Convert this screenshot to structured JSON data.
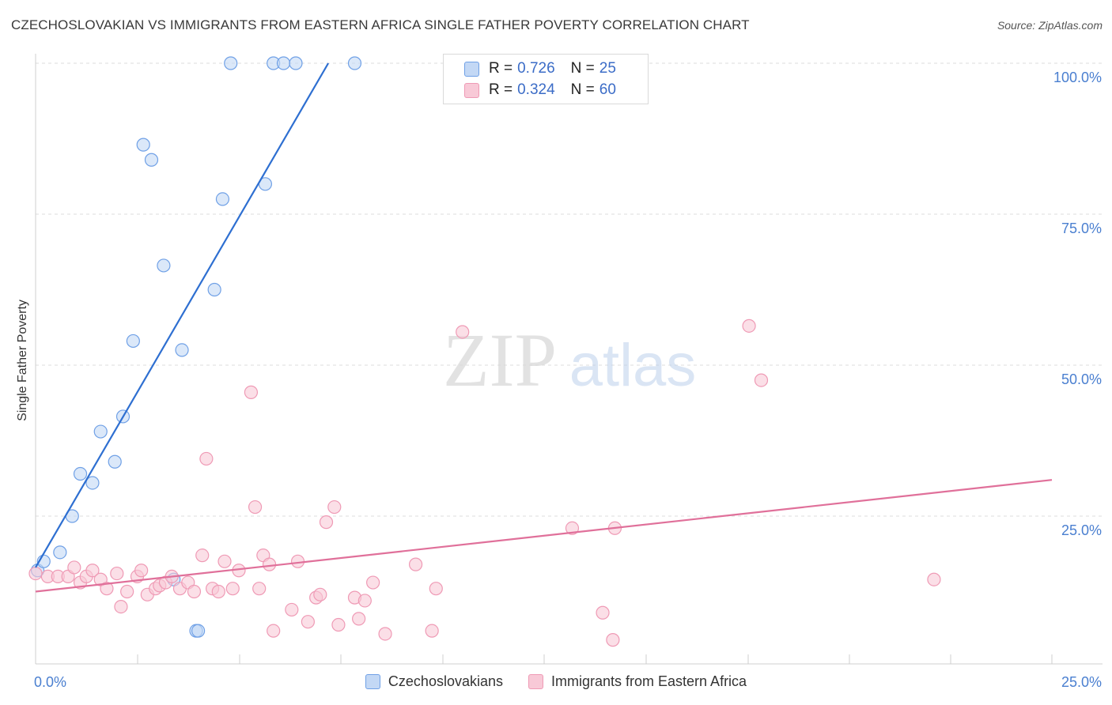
{
  "title": "CZECHOSLOVAKIAN VS IMMIGRANTS FROM EASTERN AFRICA SINGLE FATHER POVERTY CORRELATION CHART",
  "source": "Source: ZipAtlas.com",
  "watermark": {
    "zip": "ZIP",
    "atlas": "atlas"
  },
  "legend": {
    "rows": [
      {
        "r_label": "R =",
        "r_value": "0.726",
        "n_label": "N =",
        "n_value": "25"
      },
      {
        "r_label": "R =",
        "r_value": "0.324",
        "n_label": "N =",
        "n_value": "60"
      }
    ]
  },
  "chart_data": {
    "type": "scatter",
    "title": "CZECHOSLOVAKIAN VS IMMIGRANTS FROM EASTERN AFRICA SINGLE FATHER POVERTY CORRELATION CHART",
    "xlabel": "",
    "ylabel": "Single Father Poverty",
    "xlim": [
      0,
      25
    ],
    "ylim": [
      0,
      100
    ],
    "x_tick_labels": [
      "0.0%",
      "25.0%"
    ],
    "y_tick_labels": [
      "100.0%",
      "75.0%",
      "50.0%",
      "25.0%"
    ],
    "y_tick_values": [
      100,
      75,
      50,
      25
    ],
    "grid": true,
    "series": [
      {
        "name": "Czechoslovakians",
        "color": "#6fa0e6",
        "fill": "#c3d8f5",
        "line_color": "#2e6fd1",
        "trend": {
          "x0": 0.0,
          "y0": 16.5,
          "x1": 7.2,
          "y1": 100.0
        },
        "points": [
          [
            0.05,
            16.0
          ],
          [
            0.2,
            17.5
          ],
          [
            0.6,
            19.0
          ],
          [
            0.9,
            25.0
          ],
          [
            1.1,
            32.0
          ],
          [
            1.4,
            30.5
          ],
          [
            1.6,
            39.0
          ],
          [
            1.95,
            34.0
          ],
          [
            2.15,
            41.5
          ],
          [
            2.4,
            54.0
          ],
          [
            2.65,
            86.5
          ],
          [
            2.85,
            84.0
          ],
          [
            3.15,
            66.5
          ],
          [
            3.4,
            14.5
          ],
          [
            3.6,
            52.5
          ],
          [
            3.95,
            6.0
          ],
          [
            4.0,
            6.0
          ],
          [
            4.4,
            62.5
          ],
          [
            4.6,
            77.5
          ],
          [
            4.8,
            100.0
          ],
          [
            5.65,
            80.0
          ],
          [
            5.85,
            100.0
          ],
          [
            6.1,
            100.0
          ],
          [
            6.4,
            100.0
          ],
          [
            7.85,
            100.0
          ]
        ]
      },
      {
        "name": "Immigrants from Eastern Africa",
        "color": "#ef9ab5",
        "fill": "#f8c9d7",
        "line_color": "#e0709a",
        "trend": {
          "x0": 0.0,
          "y0": 12.5,
          "x1": 25.0,
          "y1": 31.0
        },
        "points": [
          [
            0.0,
            15.5
          ],
          [
            0.3,
            15.0
          ],
          [
            0.55,
            15.0
          ],
          [
            0.8,
            15.0
          ],
          [
            0.95,
            16.5
          ],
          [
            1.1,
            14.0
          ],
          [
            1.25,
            15.0
          ],
          [
            1.4,
            16.0
          ],
          [
            1.6,
            14.5
          ],
          [
            1.75,
            13.0
          ],
          [
            2.0,
            15.5
          ],
          [
            2.1,
            10.0
          ],
          [
            2.25,
            12.5
          ],
          [
            2.5,
            15.0
          ],
          [
            2.6,
            16.0
          ],
          [
            2.75,
            12.0
          ],
          [
            2.95,
            13.0
          ],
          [
            3.05,
            13.5
          ],
          [
            3.2,
            14.0
          ],
          [
            3.35,
            15.0
          ],
          [
            3.55,
            13.0
          ],
          [
            3.75,
            14.0
          ],
          [
            3.9,
            12.5
          ],
          [
            4.1,
            18.5
          ],
          [
            4.2,
            34.5
          ],
          [
            4.35,
            13.0
          ],
          [
            4.5,
            12.5
          ],
          [
            4.65,
            17.5
          ],
          [
            4.85,
            13.0
          ],
          [
            5.0,
            16.0
          ],
          [
            5.3,
            45.5
          ],
          [
            5.4,
            26.5
          ],
          [
            5.5,
            13.0
          ],
          [
            5.6,
            18.5
          ],
          [
            5.75,
            17.0
          ],
          [
            5.85,
            6.0
          ],
          [
            6.3,
            9.5
          ],
          [
            6.45,
            17.5
          ],
          [
            6.7,
            7.5
          ],
          [
            6.9,
            11.5
          ],
          [
            7.0,
            12.0
          ],
          [
            7.15,
            24.0
          ],
          [
            7.35,
            26.5
          ],
          [
            7.45,
            7.0
          ],
          [
            7.85,
            11.5
          ],
          [
            7.95,
            8.0
          ],
          [
            8.1,
            11.0
          ],
          [
            8.3,
            14.0
          ],
          [
            8.6,
            5.5
          ],
          [
            9.35,
            17.0
          ],
          [
            9.75,
            6.0
          ],
          [
            9.85,
            13.0
          ],
          [
            10.5,
            55.5
          ],
          [
            13.2,
            23.0
          ],
          [
            13.95,
            9.0
          ],
          [
            14.2,
            4.5
          ],
          [
            14.25,
            23.0
          ],
          [
            17.55,
            56.5
          ],
          [
            17.85,
            47.5
          ],
          [
            22.1,
            14.5
          ]
        ]
      }
    ]
  }
}
